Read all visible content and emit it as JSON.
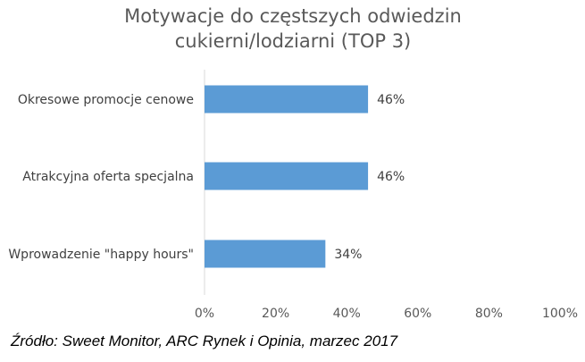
{
  "chart_data": {
    "type": "bar",
    "orientation": "horizontal",
    "title_lines": [
      "Motywacje do częstszych odwiedzin",
      "cukierni/lodziarni  (TOP 3)"
    ],
    "categories": [
      "Okresowe promocje cenowe",
      "Atrakcyjna oferta specjalna",
      "Wprowadzenie \"happy hours\""
    ],
    "values": [
      46,
      46,
      34
    ],
    "value_labels": [
      "46%",
      "46%",
      "34%"
    ],
    "xlim": [
      0,
      100
    ],
    "x_ticks": [
      0,
      20,
      40,
      60,
      80,
      100
    ],
    "x_tick_labels": [
      "0%",
      "20%",
      "40%",
      "60%",
      "80%",
      "100%"
    ],
    "grid": false,
    "legend": "none",
    "bar_color": "#5B9BD5",
    "axis_color": "#D9D9D9"
  },
  "source": "Źródło: Sweet Monitor, ARC Rynek i Opinia, marzec 2017"
}
